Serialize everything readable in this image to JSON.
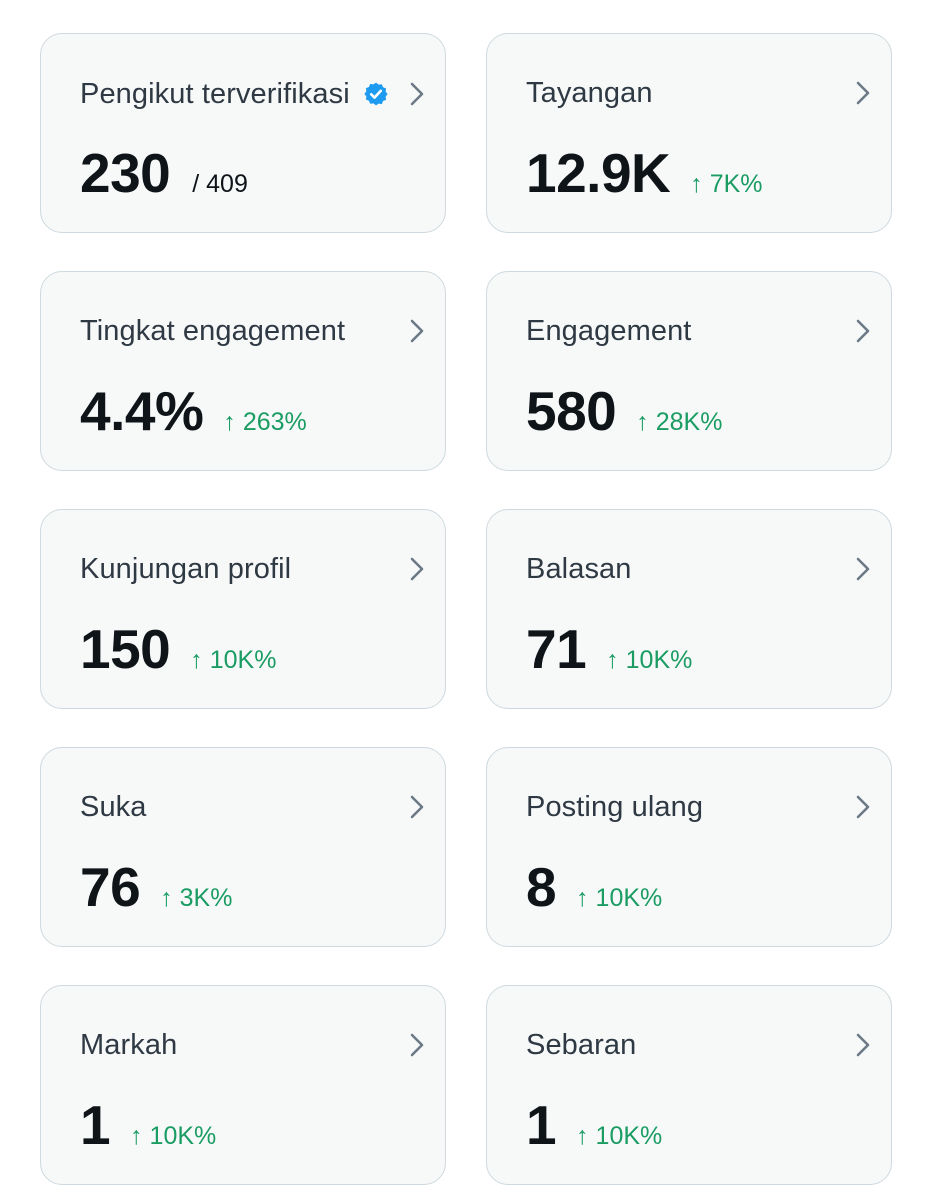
{
  "icons": {
    "verified": "verified-badge-icon",
    "chevron": "chevron-right-icon"
  },
  "colors": {
    "card_bg": "#f7f9f9",
    "card_border": "#cfd9de",
    "title": "#2f3943",
    "value": "#0f1419",
    "delta_positive": "#1a9c63",
    "verified": "#1d9bf0",
    "chevron": "#6b7a86"
  },
  "metrics": [
    {
      "title": "Pengikut terverifikasi",
      "value": "230",
      "total": "/ 409"
    },
    {
      "title": "Tayangan",
      "value": "12.9K",
      "delta": "↑ 7K%"
    },
    {
      "title": "Tingkat engagement",
      "value": "4.4%",
      "delta": "↑ 263%"
    },
    {
      "title": "Engagement",
      "value": "580",
      "delta": "↑ 28K%"
    },
    {
      "title": "Kunjungan profil",
      "value": "150",
      "delta": "↑ 10K%"
    },
    {
      "title": "Balasan",
      "value": "71",
      "delta": "↑ 10K%"
    },
    {
      "title": "Suka",
      "value": "76",
      "delta": "↑ 3K%"
    },
    {
      "title": "Posting ulang",
      "value": "8",
      "delta": "↑ 10K%"
    },
    {
      "title": "Markah",
      "value": "1",
      "delta": "↑ 10K%"
    },
    {
      "title": "Sebaran",
      "value": "1",
      "delta": "↑ 10K%"
    }
  ]
}
